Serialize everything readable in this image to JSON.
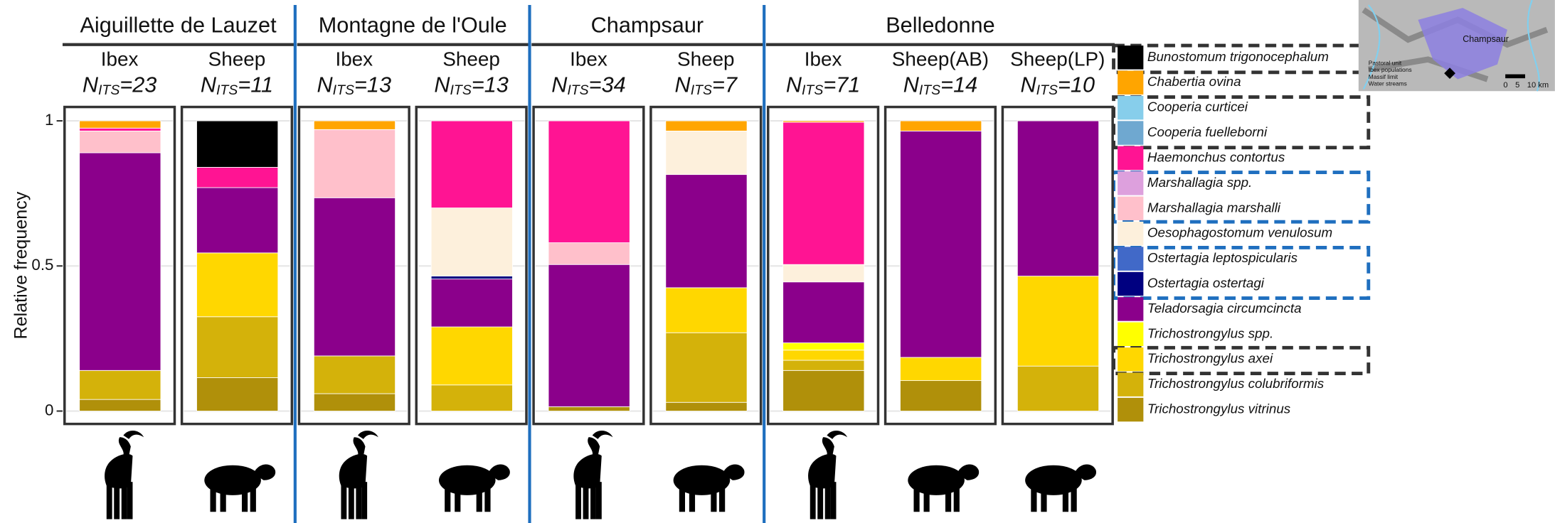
{
  "chart_data": {
    "type": "stacked-bar",
    "y_label": "Relative frequency",
    "ylim": [
      0,
      1
    ],
    "yticks": [
      0,
      0.5,
      1
    ],
    "grid": true,
    "n_symbol": "N",
    "n_subscript": "ITS",
    "n_equals": "=",
    "groups": [
      {
        "name": "Aiguillette de Lauzet",
        "categories": [
          "Ibex",
          "Sheep"
        ],
        "n": [
          23,
          11
        ]
      },
      {
        "name": "Montagne de l'Oule",
        "categories": [
          "Ibex",
          "Sheep"
        ],
        "n": [
          13,
          13
        ]
      },
      {
        "name": "Champsaur",
        "categories": [
          "Ibex",
          "Sheep"
        ],
        "n": [
          34,
          7
        ]
      },
      {
        "name": "Belledonne",
        "categories": [
          "Ibex",
          "Sheep(AB)",
          "Sheep(LP)"
        ],
        "n": [
          71,
          14,
          10
        ]
      }
    ],
    "series": [
      {
        "name": "Bunostomum trigonocephalum",
        "color": "#000000",
        "values": [
          0,
          0.16,
          0,
          0,
          0,
          0,
          0,
          0,
          0
        ]
      },
      {
        "name": "Chabertia ovina",
        "color": "#ffa500",
        "values": [
          0.025,
          0,
          0.03,
          0,
          0,
          0.035,
          0.005,
          0.035,
          0
        ]
      },
      {
        "name": "Cooperia curticei",
        "color": "#87ceeb",
        "values": [
          0,
          0,
          0,
          0,
          0,
          0,
          0,
          0,
          0
        ]
      },
      {
        "name": "Cooperia fuelleborni",
        "color": "#6fa8d0",
        "values": [
          0,
          0,
          0,
          0,
          0,
          0,
          0,
          0,
          0
        ]
      },
      {
        "name": "Haemonchus contortus",
        "color": "#ff1493",
        "values": [
          0.01,
          0.07,
          0,
          0.3,
          0.42,
          0,
          0.49,
          0,
          0
        ]
      },
      {
        "name": "Marshallagia spp.",
        "color": "#dda0dd",
        "values": [
          0,
          0,
          0,
          0,
          0,
          0,
          0,
          0,
          0
        ]
      },
      {
        "name": "Marshallagia marshalli",
        "color": "#ffc0cb",
        "values": [
          0.075,
          0,
          0.235,
          0,
          0.075,
          0,
          0,
          0,
          0
        ]
      },
      {
        "name": "Oesophagostomum venulosum",
        "color": "#fdf0dc",
        "values": [
          0,
          0,
          0,
          0.235,
          0,
          0.15,
          0.06,
          0,
          0
        ]
      },
      {
        "name": "Ostertagia leptospicularis",
        "color": "#4169c8",
        "values": [
          0,
          0,
          0,
          0,
          0,
          0,
          0,
          0,
          0
        ]
      },
      {
        "name": "Ostertagia ostertagi",
        "color": "#000080",
        "values": [
          0,
          0,
          0,
          0.01,
          0,
          0,
          0,
          0,
          0
        ]
      },
      {
        "name": "Teladorsagia circumcincta",
        "color": "#8b008b",
        "values": [
          0.75,
          0.225,
          0.545,
          0.165,
          0.49,
          0.39,
          0.21,
          0.78,
          0.535
        ]
      },
      {
        "name": "Trichostrongylus spp.",
        "color": "#ffff00",
        "values": [
          0,
          0,
          0,
          0,
          0,
          0,
          0.025,
          0,
          0
        ]
      },
      {
        "name": "Trichostrongylus axei",
        "color": "#ffd700",
        "values": [
          0,
          0.22,
          0,
          0.2,
          0,
          0.155,
          0.035,
          0.08,
          0.31
        ]
      },
      {
        "name": "Trichostrongylus colubriformis",
        "color": "#d4b20a",
        "values": [
          0.1,
          0.21,
          0.13,
          0.09,
          0,
          0.24,
          0.035,
          0,
          0.155
        ]
      },
      {
        "name": "Trichostrongylus vitrinus",
        "color": "#b0900a",
        "values": [
          0.04,
          0.115,
          0.06,
          0,
          0.015,
          0.03,
          0.14,
          0.105,
          0
        ]
      }
    ],
    "inset": {
      "region": "Champsaur",
      "legend": [
        "Pastoral unit",
        "Ibex populations",
        "Massif limit",
        "Water streams"
      ],
      "scale_labels": [
        "0",
        "5",
        "10 km"
      ]
    }
  }
}
